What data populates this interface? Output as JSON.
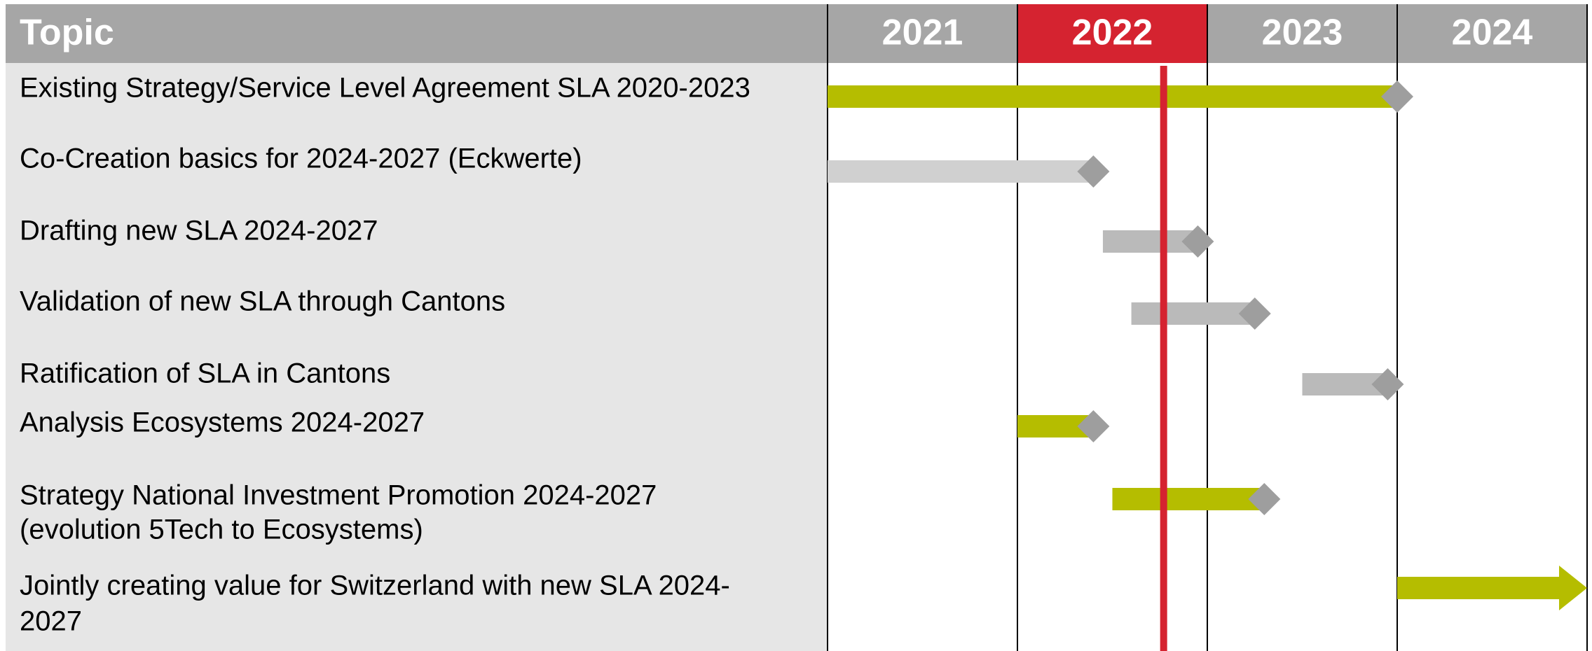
{
  "chart_data": {
    "type": "gantt",
    "header_label": "Topic",
    "columns": [
      "2021",
      "2022",
      "2023",
      "2024"
    ],
    "header_colors": [
      "#a6a6a6",
      "#d52330",
      "#a6a6a6",
      "#a6a6a6"
    ],
    "xlim": [
      2021,
      2025
    ],
    "xticks": [
      2021,
      2022,
      2023,
      2024,
      2025
    ],
    "today": 2022.77,
    "today_color": "#d52330",
    "tasks": [
      {
        "label": [
          "Existing Strategy/Service Level Agreement SLA 2020-2023"
        ],
        "start": 2021.0,
        "end": 2024.0,
        "color": "#b5bd00",
        "end_marker": "diamond"
      },
      {
        "label": [
          "Co-Creation basics for 2024-2027 (Eckwerte)"
        ],
        "start": 2021.0,
        "end": 2022.4,
        "color": "#d0d0d0",
        "end_marker": "diamond"
      },
      {
        "label": [
          "Drafting new SLA 2024-2027"
        ],
        "start": 2022.45,
        "end": 2022.95,
        "color": "#bababa",
        "end_marker": "diamond"
      },
      {
        "label": [
          "Validation of new SLA through Cantons"
        ],
        "start": 2022.6,
        "end": 2023.25,
        "color": "#bababa",
        "end_marker": "diamond"
      },
      {
        "label": [
          "Ratification of SLA in Cantons"
        ],
        "start": 2023.5,
        "end": 2023.95,
        "color": "#bababa",
        "end_marker": "diamond"
      },
      {
        "label": [
          "Analysis Ecosystems 2024-2027"
        ],
        "start": 2022.0,
        "end": 2022.4,
        "color": "#b5bd00",
        "end_marker": "diamond"
      },
      {
        "label": [
          "Strategy National Investment Promotion 2024-2027",
          "(evolution 5Tech to Ecosystems)"
        ],
        "start": 2022.5,
        "end": 2023.3,
        "color": "#b5bd00",
        "end_marker": "diamond"
      },
      {
        "label": [
          "Jointly creating value for Switzerland with new SLA 2024-",
          "2027"
        ],
        "start": 2024.0,
        "end": 2025.0,
        "color": "#b5bd00",
        "end_marker": "arrow"
      }
    ]
  }
}
